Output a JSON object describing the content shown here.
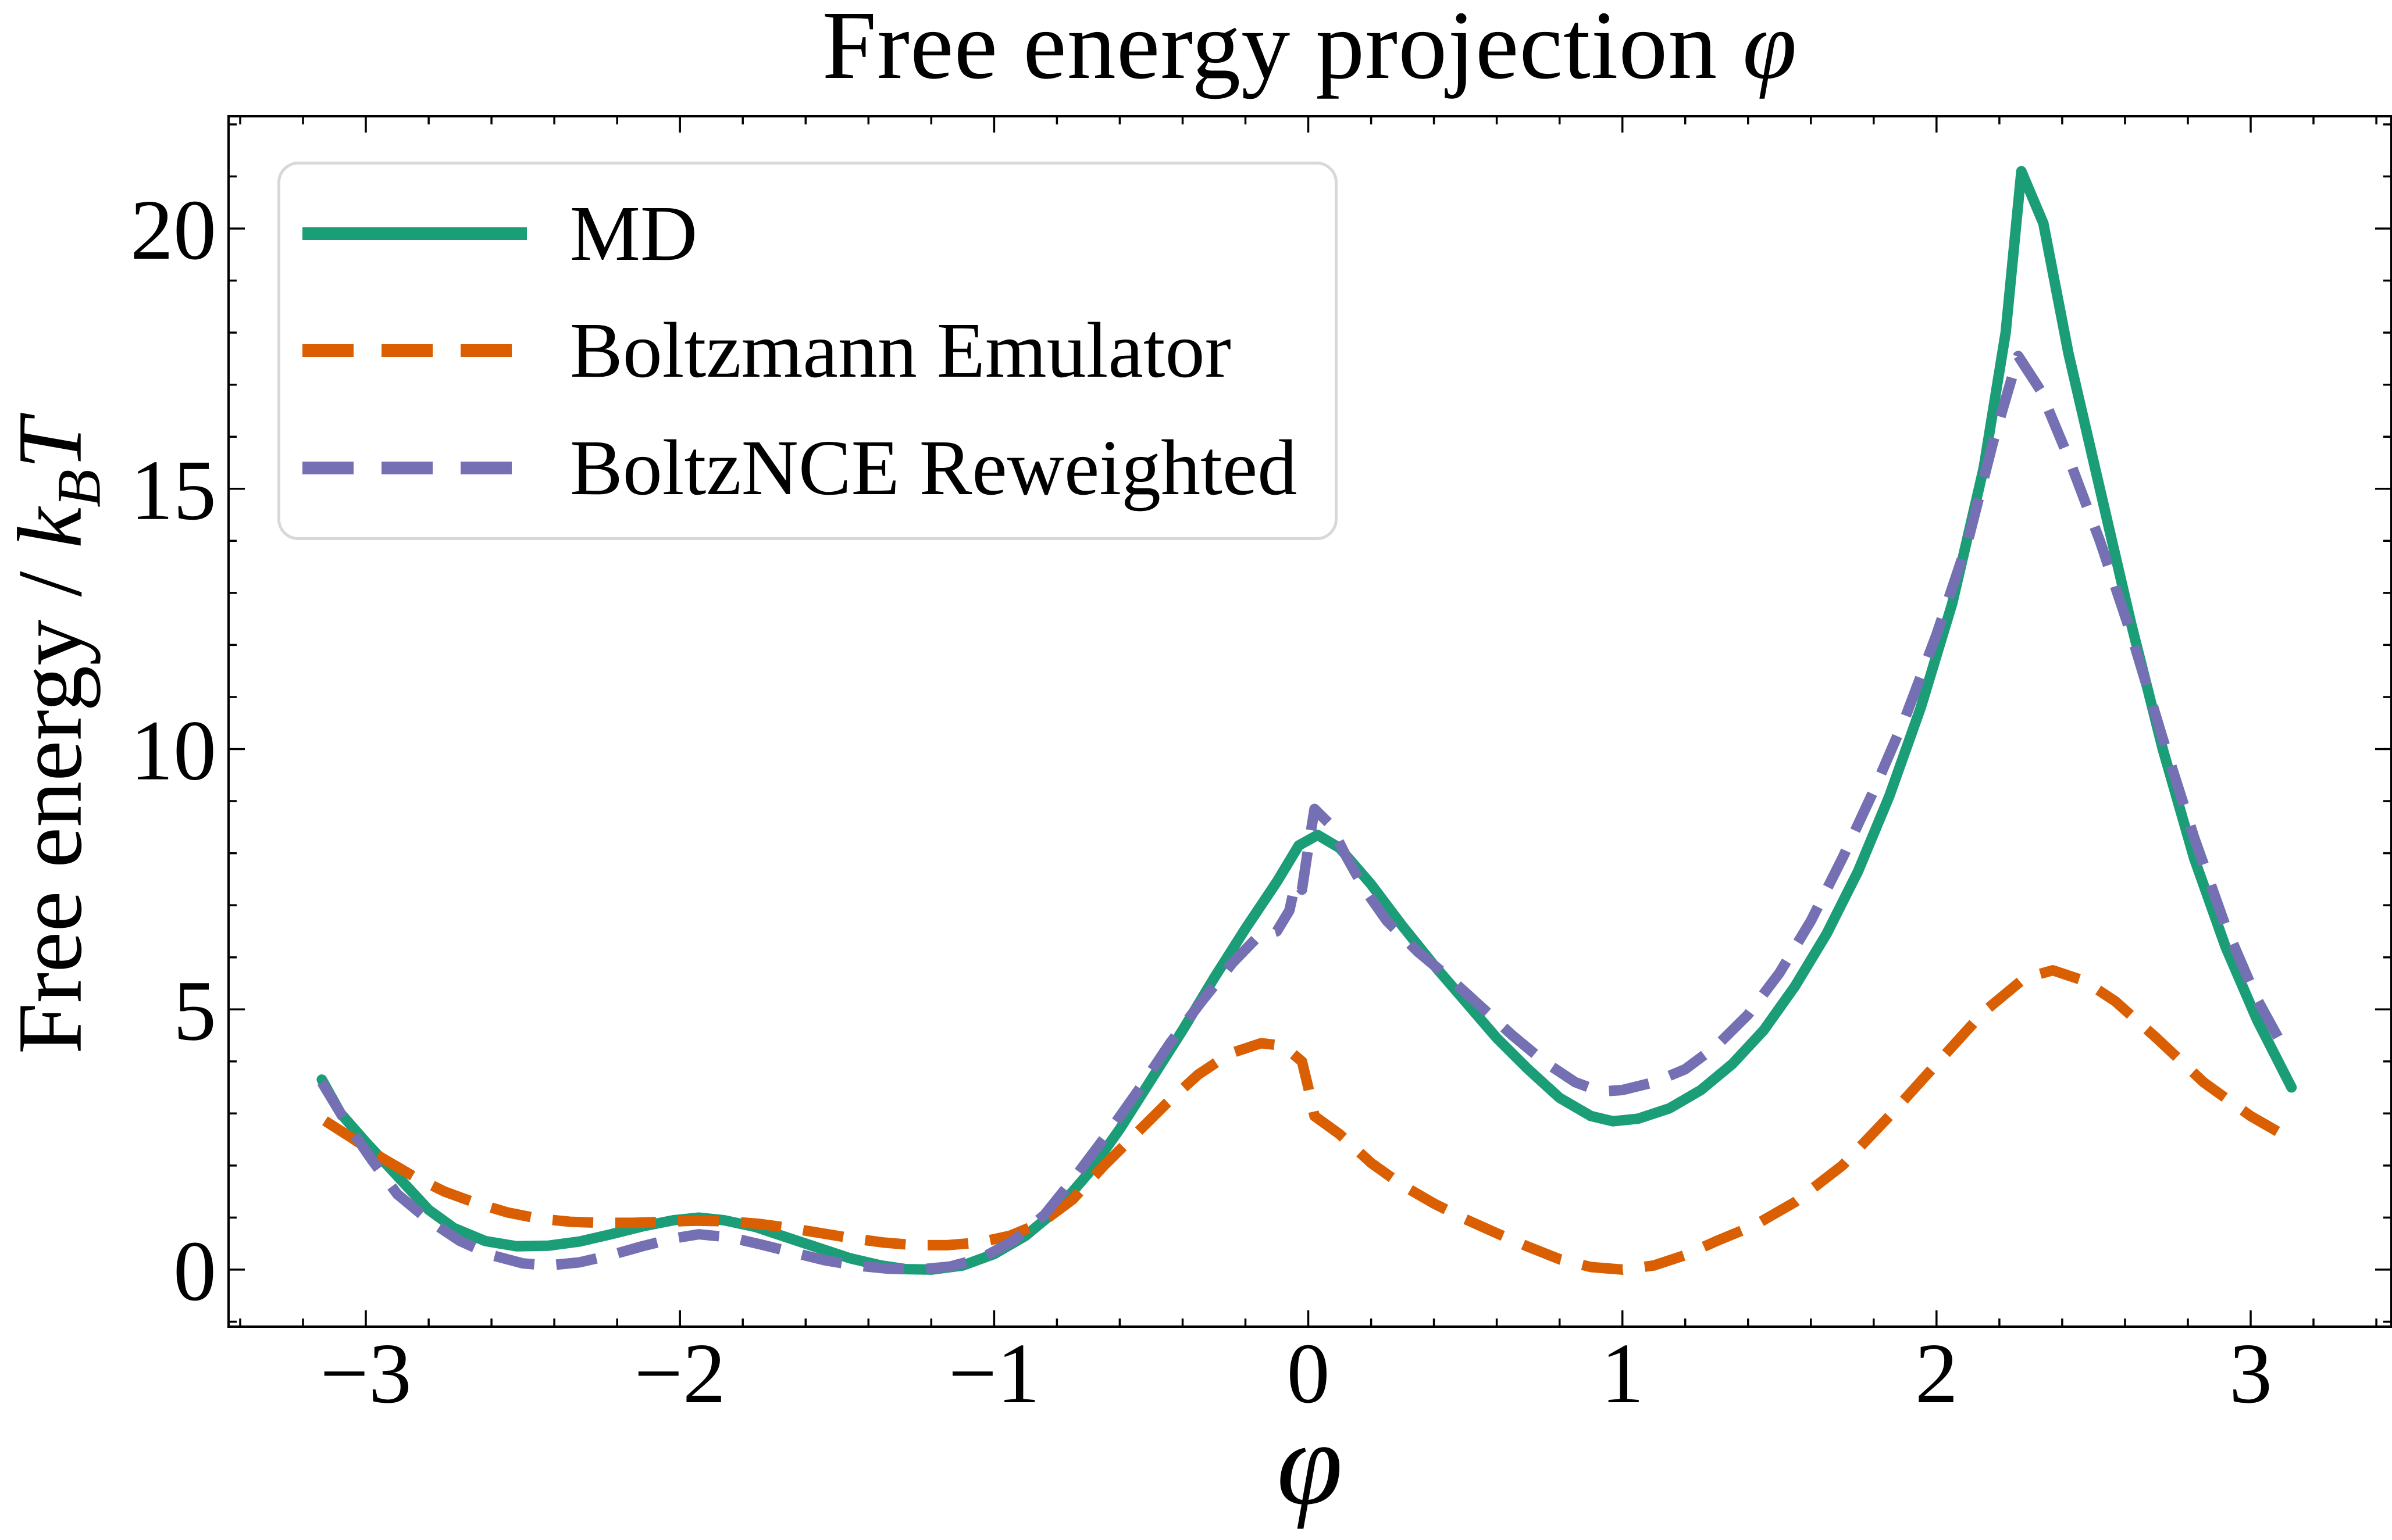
{
  "title": {
    "text": "Free energy projection ",
    "math": "φ"
  },
  "ylabel": {
    "pre": "Free energy / ",
    "k": "k",
    "ksub": "B",
    "kt": "T"
  },
  "xlabel": "φ",
  "legend": {
    "entries": [
      {
        "label": "MD"
      },
      {
        "label": "Boltzmann Emulator"
      },
      {
        "label": "BoltzNCE Reweighted"
      }
    ]
  },
  "chart_data": {
    "type": "line",
    "title": "Free energy projection φ",
    "xlabel": "φ",
    "ylabel": "Free energy / k_BT",
    "xlim": [
      -3.437,
      3.448
    ],
    "ylim": [
      -1.095,
      22.156
    ],
    "x_major_ticks": [
      -3,
      -2,
      -1,
      0,
      1,
      2,
      3
    ],
    "x_minor_step": 0.2,
    "y_major_ticks": [
      0,
      5,
      10,
      15,
      20
    ],
    "y_minor_step": 1,
    "grid": false,
    "legend_position": "upper left",
    "background": "#ffffff",
    "spine_color": "#000000",
    "series": [
      {
        "name": "MD",
        "color": "#1b9e77",
        "style": "solid",
        "line_width": 18,
        "points": [
          [
            -3.14,
            3.65
          ],
          [
            -3.08,
            3.0
          ],
          [
            -3.0,
            2.45
          ],
          [
            -2.9,
            1.8
          ],
          [
            -2.8,
            1.15
          ],
          [
            -2.72,
            0.8
          ],
          [
            -2.62,
            0.55
          ],
          [
            -2.52,
            0.45
          ],
          [
            -2.42,
            0.46
          ],
          [
            -2.32,
            0.54
          ],
          [
            -2.22,
            0.68
          ],
          [
            -2.12,
            0.83
          ],
          [
            -2.02,
            0.95
          ],
          [
            -1.94,
            1.0
          ],
          [
            -1.86,
            0.95
          ],
          [
            -1.76,
            0.82
          ],
          [
            -1.66,
            0.62
          ],
          [
            -1.56,
            0.42
          ],
          [
            -1.46,
            0.22
          ],
          [
            -1.36,
            0.08
          ],
          [
            -1.28,
            0.01
          ],
          [
            -1.2,
            0.0
          ],
          [
            -1.1,
            0.08
          ],
          [
            -1.0,
            0.3
          ],
          [
            -0.9,
            0.65
          ],
          [
            -0.8,
            1.15
          ],
          [
            -0.7,
            1.85
          ],
          [
            -0.6,
            2.7
          ],
          [
            -0.5,
            3.65
          ],
          [
            -0.4,
            4.6
          ],
          [
            -0.3,
            5.6
          ],
          [
            -0.2,
            6.55
          ],
          [
            -0.1,
            7.45
          ],
          [
            -0.03,
            8.15
          ],
          [
            0.03,
            8.35
          ],
          [
            0.1,
            8.1
          ],
          [
            0.2,
            7.4
          ],
          [
            0.3,
            6.6
          ],
          [
            0.4,
            5.85
          ],
          [
            0.5,
            5.15
          ],
          [
            0.6,
            4.45
          ],
          [
            0.7,
            3.85
          ],
          [
            0.8,
            3.3
          ],
          [
            0.9,
            2.95
          ],
          [
            0.97,
            2.85
          ],
          [
            1.05,
            2.9
          ],
          [
            1.15,
            3.1
          ],
          [
            1.25,
            3.45
          ],
          [
            1.35,
            3.95
          ],
          [
            1.45,
            4.6
          ],
          [
            1.55,
            5.45
          ],
          [
            1.65,
            6.45
          ],
          [
            1.75,
            7.65
          ],
          [
            1.85,
            9.1
          ],
          [
            1.95,
            10.8
          ],
          [
            2.05,
            12.8
          ],
          [
            2.15,
            15.4
          ],
          [
            2.22,
            18.0
          ],
          [
            2.27,
            21.1
          ],
          [
            2.34,
            20.1
          ],
          [
            2.42,
            17.6
          ],
          [
            2.52,
            15.0
          ],
          [
            2.62,
            12.4
          ],
          [
            2.72,
            10.0
          ],
          [
            2.82,
            7.9
          ],
          [
            2.92,
            6.2
          ],
          [
            3.02,
            4.8
          ],
          [
            3.13,
            3.5
          ]
        ]
      },
      {
        "name": "Boltzmann Emulator",
        "color": "#d95f02",
        "style": "dashed",
        "line_width": 18,
        "dash": [
          70,
          38
        ],
        "points": [
          [
            -3.13,
            2.86
          ],
          [
            -3.05,
            2.55
          ],
          [
            -2.95,
            2.15
          ],
          [
            -2.85,
            1.8
          ],
          [
            -2.75,
            1.5
          ],
          [
            -2.65,
            1.28
          ],
          [
            -2.55,
            1.1
          ],
          [
            -2.45,
            0.98
          ],
          [
            -2.35,
            0.92
          ],
          [
            -2.25,
            0.9
          ],
          [
            -2.15,
            0.9
          ],
          [
            -2.05,
            0.92
          ],
          [
            -1.95,
            0.94
          ],
          [
            -1.85,
            0.93
          ],
          [
            -1.75,
            0.88
          ],
          [
            -1.65,
            0.8
          ],
          [
            -1.55,
            0.7
          ],
          [
            -1.45,
            0.6
          ],
          [
            -1.35,
            0.52
          ],
          [
            -1.25,
            0.47
          ],
          [
            -1.15,
            0.47
          ],
          [
            -1.05,
            0.52
          ],
          [
            -0.95,
            0.65
          ],
          [
            -0.85,
            0.9
          ],
          [
            -0.75,
            1.35
          ],
          [
            -0.65,
            2.0
          ],
          [
            -0.55,
            2.6
          ],
          [
            -0.45,
            3.2
          ],
          [
            -0.35,
            3.75
          ],
          [
            -0.25,
            4.15
          ],
          [
            -0.15,
            4.35
          ],
          [
            -0.08,
            4.3
          ],
          [
            -0.02,
            4.0
          ],
          [
            0.0,
            3.5
          ],
          [
            0.02,
            2.95
          ],
          [
            0.1,
            2.6
          ],
          [
            0.2,
            2.05
          ],
          [
            0.3,
            1.62
          ],
          [
            0.4,
            1.27
          ],
          [
            0.5,
            0.97
          ],
          [
            0.6,
            0.7
          ],
          [
            0.7,
            0.44
          ],
          [
            0.8,
            0.2
          ],
          [
            0.9,
            0.05
          ],
          [
            1.0,
            0.0
          ],
          [
            1.1,
            0.08
          ],
          [
            1.2,
            0.28
          ],
          [
            1.3,
            0.55
          ],
          [
            1.42,
            0.85
          ],
          [
            1.55,
            1.3
          ],
          [
            1.7,
            2.0
          ],
          [
            1.85,
            2.95
          ],
          [
            2.0,
            3.95
          ],
          [
            2.15,
            4.95
          ],
          [
            2.28,
            5.6
          ],
          [
            2.37,
            5.75
          ],
          [
            2.47,
            5.55
          ],
          [
            2.57,
            5.15
          ],
          [
            2.7,
            4.45
          ],
          [
            2.85,
            3.6
          ],
          [
            3.0,
            2.95
          ],
          [
            3.13,
            2.5
          ]
        ]
      },
      {
        "name": "BoltzNCE Reweighted",
        "color": "#7570b3",
        "style": "dashed",
        "line_width": 18,
        "dash": [
          70,
          38
        ],
        "points": [
          [
            -3.14,
            3.6
          ],
          [
            -3.06,
            2.8
          ],
          [
            -2.98,
            2.1
          ],
          [
            -2.9,
            1.45
          ],
          [
            -2.8,
            0.95
          ],
          [
            -2.7,
            0.55
          ],
          [
            -2.6,
            0.28
          ],
          [
            -2.5,
            0.12
          ],
          [
            -2.42,
            0.08
          ],
          [
            -2.32,
            0.14
          ],
          [
            -2.22,
            0.28
          ],
          [
            -2.12,
            0.45
          ],
          [
            -2.02,
            0.6
          ],
          [
            -1.94,
            0.68
          ],
          [
            -1.84,
            0.62
          ],
          [
            -1.74,
            0.48
          ],
          [
            -1.64,
            0.33
          ],
          [
            -1.54,
            0.18
          ],
          [
            -1.44,
            0.08
          ],
          [
            -1.34,
            0.02
          ],
          [
            -1.24,
            0.0
          ],
          [
            -1.14,
            0.06
          ],
          [
            -1.04,
            0.22
          ],
          [
            -0.94,
            0.55
          ],
          [
            -0.84,
            1.05
          ],
          [
            -0.74,
            1.8
          ],
          [
            -0.64,
            2.6
          ],
          [
            -0.54,
            3.45
          ],
          [
            -0.44,
            4.35
          ],
          [
            -0.34,
            5.15
          ],
          [
            -0.24,
            5.9
          ],
          [
            -0.16,
            6.4
          ],
          [
            -0.1,
            6.5
          ],
          [
            -0.06,
            6.9
          ],
          [
            -0.04,
            7.45
          ],
          [
            -0.02,
            7.3
          ],
          [
            0.0,
            8.1
          ],
          [
            0.02,
            8.85
          ],
          [
            0.07,
            8.55
          ],
          [
            0.12,
            7.95
          ],
          [
            0.18,
            7.3
          ],
          [
            0.25,
            6.7
          ],
          [
            0.35,
            6.1
          ],
          [
            0.45,
            5.6
          ],
          [
            0.55,
            5.05
          ],
          [
            0.65,
            4.5
          ],
          [
            0.75,
            4.0
          ],
          [
            0.85,
            3.6
          ],
          [
            0.93,
            3.42
          ],
          [
            1.0,
            3.45
          ],
          [
            1.1,
            3.6
          ],
          [
            1.2,
            3.85
          ],
          [
            1.3,
            4.3
          ],
          [
            1.4,
            4.9
          ],
          [
            1.5,
            5.7
          ],
          [
            1.6,
            6.7
          ],
          [
            1.7,
            7.9
          ],
          [
            1.8,
            9.2
          ],
          [
            1.9,
            10.6
          ],
          [
            2.0,
            12.2
          ],
          [
            2.1,
            14.0
          ],
          [
            2.18,
            15.9
          ],
          [
            2.26,
            17.55
          ],
          [
            2.33,
            16.9
          ],
          [
            2.42,
            15.6
          ],
          [
            2.52,
            14.0
          ],
          [
            2.62,
            12.2
          ],
          [
            2.72,
            10.2
          ],
          [
            2.82,
            8.3
          ],
          [
            2.92,
            6.6
          ],
          [
            3.02,
            5.2
          ],
          [
            3.12,
            4.1
          ]
        ]
      }
    ]
  }
}
